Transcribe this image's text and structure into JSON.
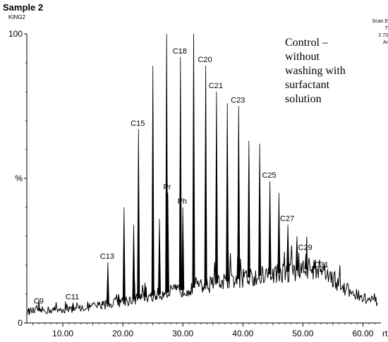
{
  "header": {
    "title": "Sample 2",
    "subtitle": "KING2",
    "scan_lines": [
      "Scan E",
      "T",
      "2.73",
      "Ar"
    ]
  },
  "annotation": [
    "Control –",
    "without",
    "washing with",
    "surfactant",
    "solution"
  ],
  "chart_data": {
    "type": "line",
    "xlabel": "rt",
    "ylabel": "%",
    "xlim": [
      4,
      63
    ],
    "ylim": [
      0,
      100
    ],
    "x_ticks": [
      "10.00",
      "20.00",
      "30.00",
      "40.00",
      "50.00",
      "60.00"
    ],
    "y_ticks": [
      "0",
      "%",
      "100"
    ],
    "grid": false,
    "baseline_hump": [
      [
        4,
        4
      ],
      [
        8,
        4.5
      ],
      [
        12,
        5
      ],
      [
        16,
        6
      ],
      [
        20,
        7.5
      ],
      [
        25,
        9.5
      ],
      [
        30,
        11.5
      ],
      [
        35,
        13.5
      ],
      [
        40,
        15.5
      ],
      [
        45,
        17
      ],
      [
        50,
        18.5
      ],
      [
        52,
        19
      ],
      [
        54,
        17
      ],
      [
        56,
        13.5
      ],
      [
        58,
        10.5
      ],
      [
        60,
        8.5
      ],
      [
        62.5,
        7
      ]
    ],
    "peaks": [
      {
        "x": 4.3,
        "y": 5
      },
      {
        "x": 6.1,
        "y": 5.5,
        "label": "C9"
      },
      {
        "x": 8.5,
        "y": 5
      },
      {
        "x": 11.7,
        "y": 7,
        "label": "C11"
      },
      {
        "x": 14.6,
        "y": 6
      },
      {
        "x": 16.6,
        "y": 7
      },
      {
        "x": 17.5,
        "y": 21,
        "label": "C13"
      },
      {
        "x": 19.3,
        "y": 10
      },
      {
        "x": 20.2,
        "y": 40
      },
      {
        "x": 21.8,
        "y": 34
      },
      {
        "x": 22.6,
        "y": 67,
        "label": "C15"
      },
      {
        "x": 23.7,
        "y": 14
      },
      {
        "x": 25.0,
        "y": 89
      },
      {
        "x": 26.1,
        "y": 36
      },
      {
        "x": 27.3,
        "y": 100
      },
      {
        "x": 27.5,
        "y": 45,
        "label": "Pr"
      },
      {
        "x": 29.6,
        "y": 92,
        "label": "C18"
      },
      {
        "x": 30.0,
        "y": 40,
        "label": "Ph"
      },
      {
        "x": 31.8,
        "y": 100
      },
      {
        "x": 33.8,
        "y": 89,
        "label": "C20"
      },
      {
        "x": 35.6,
        "y": 80,
        "label": "C21"
      },
      {
        "x": 37.4,
        "y": 76
      },
      {
        "x": 39.3,
        "y": 75,
        "label": "C23"
      },
      {
        "x": 41.0,
        "y": 63
      },
      {
        "x": 42.8,
        "y": 62
      },
      {
        "x": 44.5,
        "y": 49,
        "label": "C25"
      },
      {
        "x": 46.0,
        "y": 45
      },
      {
        "x": 47.5,
        "y": 34,
        "label": "C27"
      },
      {
        "x": 49.0,
        "y": 30
      },
      {
        "x": 50.5,
        "y": 24,
        "label": "C29"
      },
      {
        "x": 51.9,
        "y": 21
      },
      {
        "x": 53.2,
        "y": 18,
        "label": "C31"
      }
    ]
  }
}
